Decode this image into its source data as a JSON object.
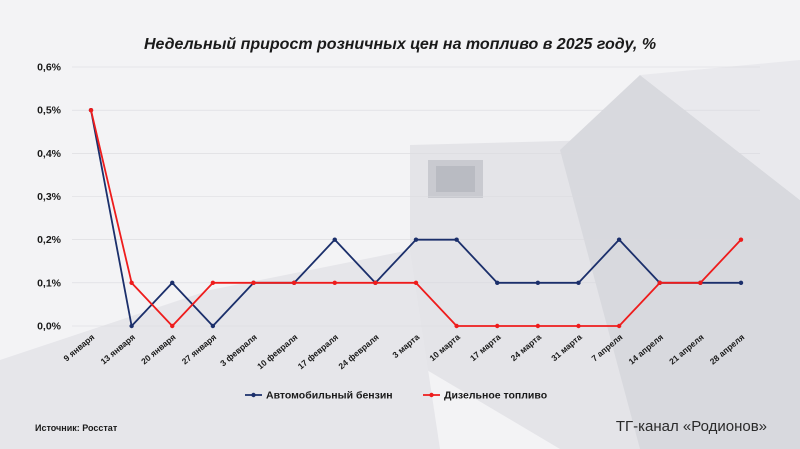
{
  "title": "Недельный прирост розничных цен на топливо в 2025 году, %",
  "source": "Источник: Росстат",
  "brand": "ТГ-канал «Родионов»",
  "colors": {
    "gasoline": "#1b2f6b",
    "diesel": "#ee1c1c",
    "grid": "#d9d9de",
    "axis_text": "#1a1a1a"
  },
  "chart_data": {
    "type": "line",
    "categories": [
      "9 января",
      "13 января",
      "20 января",
      "27 января",
      "3 февраля",
      "10 февраля",
      "17 февраля",
      "24 февраля",
      "3 марта",
      "10 марта",
      "17 марта",
      "24 марта",
      "31 марта",
      "7 апреля",
      "14 апреля",
      "21 апреля",
      "28 апреля"
    ],
    "series": [
      {
        "name": "Автомобильный бензин",
        "color": "#1b2f6b",
        "values": [
          0.5,
          0,
          0.1,
          0,
          0.1,
          0.1,
          0.2,
          0.1,
          0.2,
          0.2,
          0.1,
          0.1,
          0.1,
          0.2,
          0.1,
          0.1,
          0.1
        ]
      },
      {
        "name": "Дизельное топливо",
        "color": "#ee1c1c",
        "values": [
          0.5,
          0.1,
          0,
          0.1,
          0.1,
          0.1,
          0.1,
          0.1,
          0.1,
          0,
          0,
          0,
          0,
          0,
          0.1,
          0.1,
          0.2
        ]
      }
    ],
    "yticks": [
      "0,0%",
      "0,1%",
      "0,2%",
      "0,3%",
      "0,4%",
      "0,5%",
      "0,6%"
    ],
    "ylim": [
      0,
      0.6
    ],
    "legend": "bottom"
  }
}
